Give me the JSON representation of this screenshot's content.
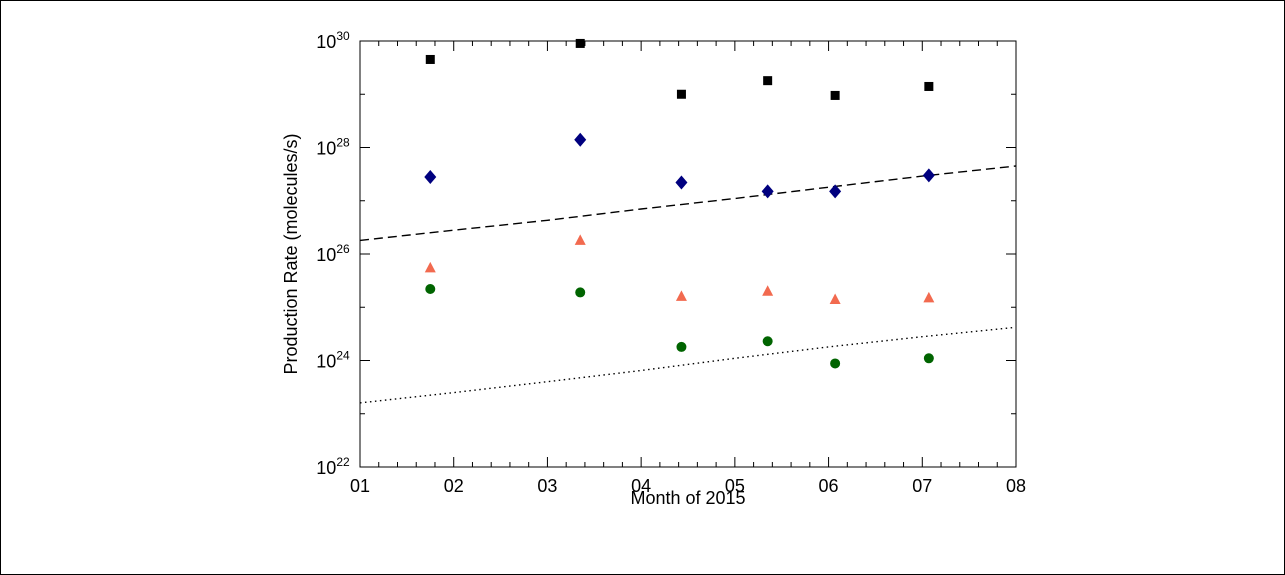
{
  "chart_data": {
    "type": "scatter",
    "title": "",
    "xlabel": "Month of 2015",
    "ylabel": "Production Rate (molecules/s)",
    "x_scale": "month",
    "y_scale": "log",
    "xlim": [
      1,
      8
    ],
    "ylim": [
      1e+22,
      1e+30
    ],
    "x_tick_labels": [
      "01",
      "02",
      "03",
      "04",
      "05",
      "06",
      "07",
      "08"
    ],
    "y_tick_labels": [
      {
        "exponent": 22
      },
      {
        "exponent": 24
      },
      {
        "exponent": 26
      },
      {
        "exponent": 28
      },
      {
        "exponent": 30
      }
    ],
    "grid": false,
    "legend": "none",
    "series": [
      {
        "marker": "square",
        "color": "#000000",
        "x": [
          1.75,
          3.35,
          4.43,
          5.35,
          6.07,
          7.07
        ],
        "y": [
          4.5e+29,
          9e+29,
          1e+29,
          1.8e+29,
          9.5e+28,
          1.4e+29
        ]
      },
      {
        "marker": "diamond",
        "color": "#00007f",
        "x": [
          1.75,
          3.35,
          4.43,
          5.35,
          6.07,
          7.07
        ],
        "y": [
          2.8e+27,
          1.4e+28,
          2.2e+27,
          1.5e+27,
          1.5e+27,
          3e+27
        ]
      },
      {
        "marker": "triangle",
        "color": "#f26a4f",
        "x": [
          1.75,
          3.35,
          4.43,
          5.35,
          6.07,
          7.07
        ],
        "y": [
          5.5e+25,
          1.8e+26,
          1.6e+25,
          2e+25,
          1.4e+25,
          1.5e+25
        ]
      },
      {
        "marker": "circle",
        "color": "#006400",
        "x": [
          1.75,
          3.35,
          4.43,
          5.35,
          6.07,
          7.07
        ],
        "y": [
          2.2e+25,
          1.9e+25,
          1.8e+24,
          2.3e+24,
          8.8e+23,
          1.1e+24
        ]
      },
      {
        "marker": "none",
        "line": "dashed",
        "color": "#000000",
        "x": [
          1,
          2,
          3,
          4,
          5,
          6,
          7,
          8
        ],
        "y": [
          1.8e+26,
          2.8e+26,
          4.3e+26,
          7e+26,
          1.1e+27,
          1.8e+27,
          2.9e+27,
          4.5e+27
        ]
      },
      {
        "marker": "none",
        "line": "dotted",
        "color": "#000000",
        "x": [
          1,
          2,
          3,
          4,
          5,
          6,
          7,
          8
        ],
        "y": [
          1.6e+23,
          2.5e+23,
          4e+23,
          6.5e+23,
          1.1e+24,
          1.8e+24,
          2.8e+24,
          4.2e+24
        ]
      }
    ]
  }
}
